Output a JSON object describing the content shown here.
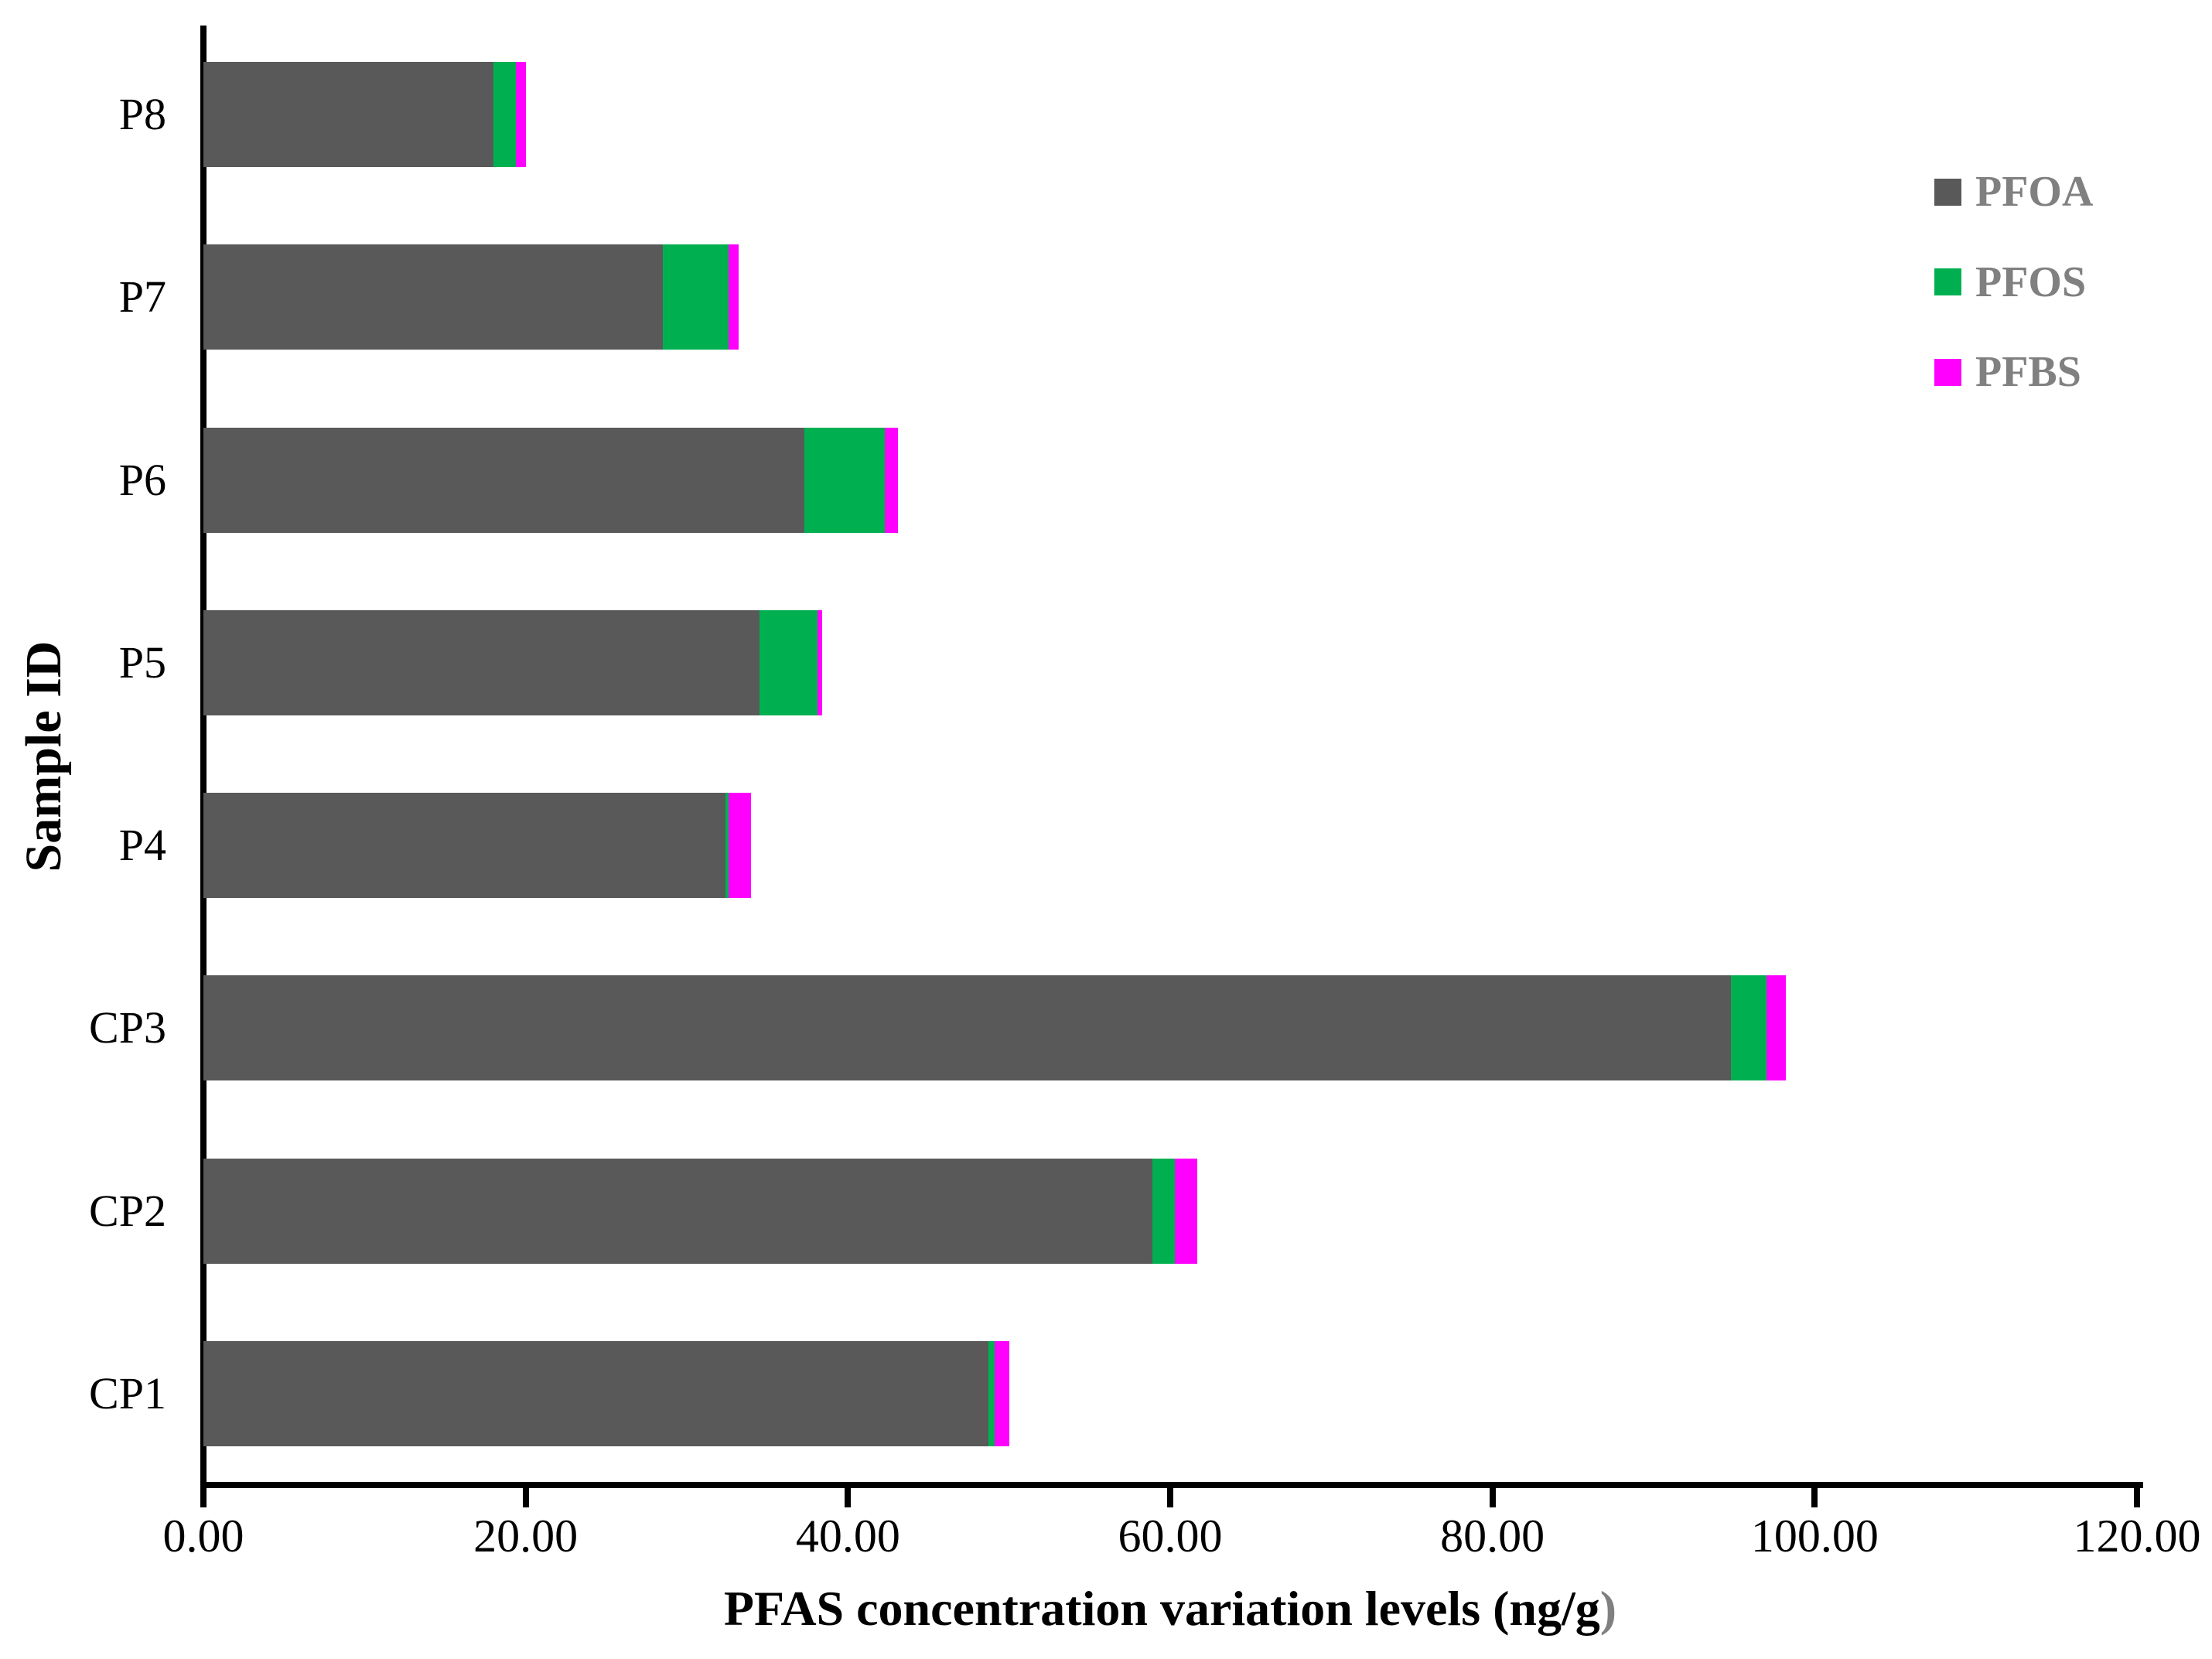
{
  "chart_data": {
    "type": "bar",
    "orientation": "horizontal",
    "stacked": true,
    "categories_order": "top-to-bottom",
    "categories": [
      "P8",
      "P7",
      "P6",
      "P5",
      "P4",
      "CP3",
      "CP2",
      "CP1"
    ],
    "series": [
      {
        "name": "PFOA",
        "color": "#595959",
        "values": [
          18.0,
          28.5,
          37.3,
          34.5,
          32.4,
          94.8,
          58.9,
          48.7
        ]
      },
      {
        "name": "PFOS",
        "color": "#00B050",
        "values": [
          1.4,
          4.1,
          5.0,
          3.6,
          0.2,
          2.2,
          1.4,
          0.4
        ]
      },
      {
        "name": "PFBS",
        "color": "#FF00FF",
        "values": [
          0.6,
          0.6,
          0.8,
          0.3,
          1.4,
          1.2,
          1.4,
          0.9
        ]
      }
    ],
    "totals": [
      20.0,
      33.2,
      43.1,
      38.4,
      34.0,
      98.2,
      61.7,
      50.0
    ],
    "xlabel": "PFAS concentration variation levels (ng/g)",
    "xlabel_main": "PFAS concentration variation levels (ng/g",
    "xlabel_suffix": ")",
    "ylabel": "Sample ID",
    "xlim": [
      0,
      120
    ],
    "xtick_step": 20,
    "xtick_labels": [
      "0.00",
      "20.00",
      "40.00",
      "60.00",
      "80.00",
      "100.00",
      "120.00"
    ],
    "grid": false,
    "legend_position": "upper-right",
    "legend_entries": [
      "PFOA",
      "PFOS",
      "PFBS"
    ]
  },
  "colors": {
    "axis": "#000000",
    "tick_label": "#000000",
    "category_label": "#000000",
    "axis_title": "#000000",
    "xlabel_suffix_color": "#808080",
    "legend_text": "#808080",
    "background": "#FFFFFF"
  }
}
